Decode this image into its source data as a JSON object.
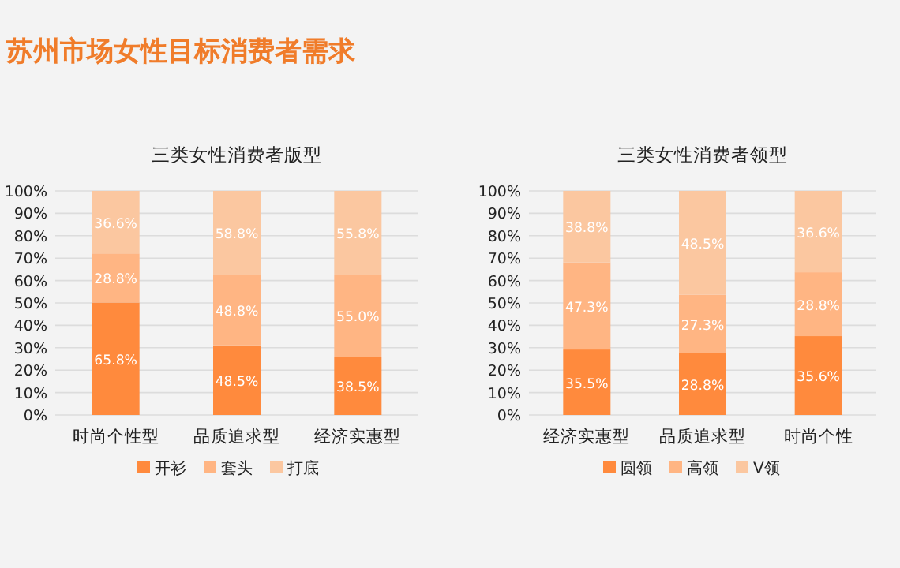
{
  "chart_data": [
    {
      "type": "bar",
      "title": "苏州市场女性目标消费者需求",
      "subtitle": "三类女性消费者版型",
      "categories": [
        "时尚个性型",
        "品质追求型",
        "经济实惠型"
      ],
      "stacked": true,
      "grid": "y",
      "legend": "bottom",
      "ylim": [
        0,
        100
      ],
      "yticks": [
        {
          "value": 0,
          "label": "0%"
        },
        {
          "value": 10,
          "label": "10%"
        },
        {
          "value": 20,
          "label": "20%"
        },
        {
          "value": 30,
          "label": "30%"
        },
        {
          "value": 40,
          "label": "40%"
        },
        {
          "value": 50,
          "label": "50%"
        },
        {
          "value": 60,
          "label": "60%"
        },
        {
          "value": 70,
          "label": "70%"
        },
        {
          "value": 80,
          "label": "80%"
        },
        {
          "value": 90,
          "label": "90%"
        },
        {
          "value": 100,
          "label": "100%"
        }
      ],
      "series": [
        {
          "name": "开衫",
          "color": "#ff8a3d",
          "values": [
            50.2,
            31.1,
            25.8
          ]
        },
        {
          "name": "套头",
          "color": "#ffb583",
          "values": [
            21.9,
            31.3,
            36.8
          ]
        },
        {
          "name": "打底",
          "color": "#fbc7a0",
          "values": [
            27.9,
            37.6,
            37.4
          ]
        }
      ],
      "annotations": [
        "65.8%",
        "28.8%",
        "36.6%",
        "48.5%",
        "48.8%",
        "58.8%",
        "38.5%",
        "55.0%",
        "55.8%"
      ]
    },
    {
      "type": "bar",
      "title": "三类女性消费者领型",
      "categories": [
        "经济实惠型",
        "品质追求型",
        "时尚个性"
      ],
      "stacked": true,
      "grid": "y",
      "legend": "bottom",
      "ylim": [
        0,
        100
      ],
      "yticks": [
        {
          "value": 0,
          "label": "0%"
        },
        {
          "value": 10,
          "label": "10%"
        },
        {
          "value": 20,
          "label": "20%"
        },
        {
          "value": 30,
          "label": "30%"
        },
        {
          "value": 40,
          "label": "40%"
        },
        {
          "value": 50,
          "label": "50%"
        },
        {
          "value": 60,
          "label": "60%"
        },
        {
          "value": 70,
          "label": "70%"
        },
        {
          "value": 80,
          "label": "80%"
        },
        {
          "value": 90,
          "label": "90%"
        },
        {
          "value": 100,
          "label": "100%"
        }
      ],
      "series": [
        {
          "name": "圆领",
          "color": "#ff8a3d",
          "values": [
            29.2,
            27.5,
            35.2
          ]
        },
        {
          "name": "高领",
          "color": "#ffb583",
          "values": [
            38.9,
            26.1,
            28.5
          ]
        },
        {
          "name": "V领",
          "color": "#fbc7a0",
          "values": [
            31.9,
            46.4,
            36.3
          ]
        }
      ],
      "annotations": [
        "35.5%",
        "47.3%",
        "38.8%",
        "28.8%",
        "27.3%",
        "48.5%",
        "35.6%",
        "28.8%",
        "36.6%"
      ]
    }
  ]
}
